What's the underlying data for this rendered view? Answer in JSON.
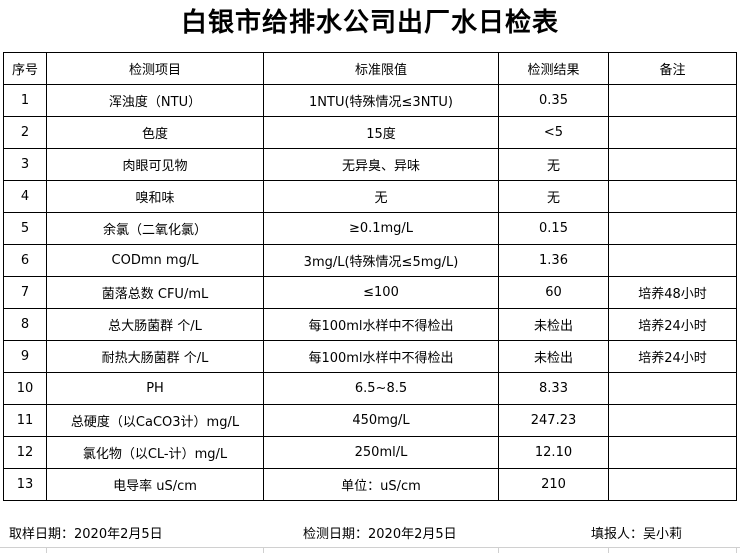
{
  "title": "白银市给排水公司出厂水日检表",
  "headers": [
    "序号",
    "检测项目",
    "标准限值",
    "检测结果",
    "备注"
  ],
  "rows": [
    [
      "1",
      "浑浊度（NTU）",
      "1NTU(特殊情况≤3NTU)",
      "0.35",
      ""
    ],
    [
      "2",
      "色度",
      "15度",
      "<5",
      ""
    ],
    [
      "3",
      "肉眼可见物",
      "无异臭、异味",
      "无",
      ""
    ],
    [
      "4",
      "嗅和味",
      "无",
      "无",
      ""
    ],
    [
      "5",
      "余氯（二氧化氯）",
      "≥0.1mg/L",
      "0.15",
      ""
    ],
    [
      "6",
      "CODmn mg/L",
      "3mg/L(特殊情况≤5mg/L)",
      "1.36",
      ""
    ],
    [
      "7",
      "菌落总数  CFU/mL",
      "≤100",
      "60",
      "培养48小时"
    ],
    [
      "8",
      "总大肠菌群 个/L",
      "每100ml水样中不得检出",
      "未检出",
      "培养24小时"
    ],
    [
      "9",
      "耐热大肠菌群 个/L",
      "每100ml水样中不得检出",
      "未检出",
      "培养24小时"
    ],
    [
      "10",
      "PH",
      "6.5~8.5",
      "8.33",
      ""
    ],
    [
      "11",
      "总硬度（以CaCO3计）mg/L",
      "450mg/L",
      "247.23",
      ""
    ],
    [
      "12",
      "氯化物（以CL-计）mg/L",
      "250ml/L",
      "12.10",
      ""
    ],
    [
      "13",
      "电导率 uS/cm",
      "单位：uS/cm",
      "210",
      ""
    ]
  ],
  "footer": {
    "sampling_date": "取样日期：2020年2月5日",
    "test_date": "检测日期：2020年2月5日",
    "reporter": "填报人：吴小莉"
  }
}
